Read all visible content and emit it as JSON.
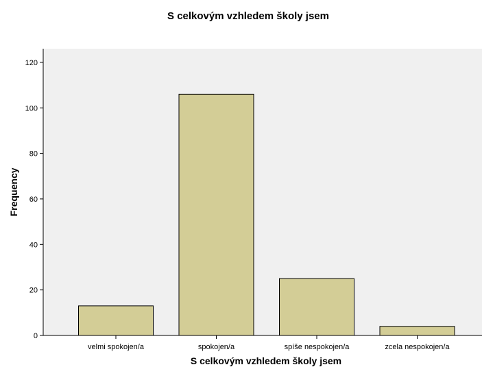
{
  "chart_data": {
    "type": "bar",
    "title": "S celkovým vzhledem školy jsem",
    "xlabel": "S celkovým vzhledem školy jsem",
    "ylabel": "Frequency",
    "categories": [
      "velmi spokojen/a",
      "spokojen/a",
      "spíše nespokojen/a",
      "zcela nespokojen/a"
    ],
    "values": [
      13,
      106,
      25,
      4
    ],
    "ylim": [
      0,
      126
    ],
    "yticks": [
      "0",
      "20",
      "40",
      "60",
      "80",
      "100",
      "120"
    ],
    "grid": false,
    "colors": {
      "bar_fill": "#d3cd96",
      "bar_stroke": "#000000",
      "plot_background": "#f0f0f0"
    }
  }
}
